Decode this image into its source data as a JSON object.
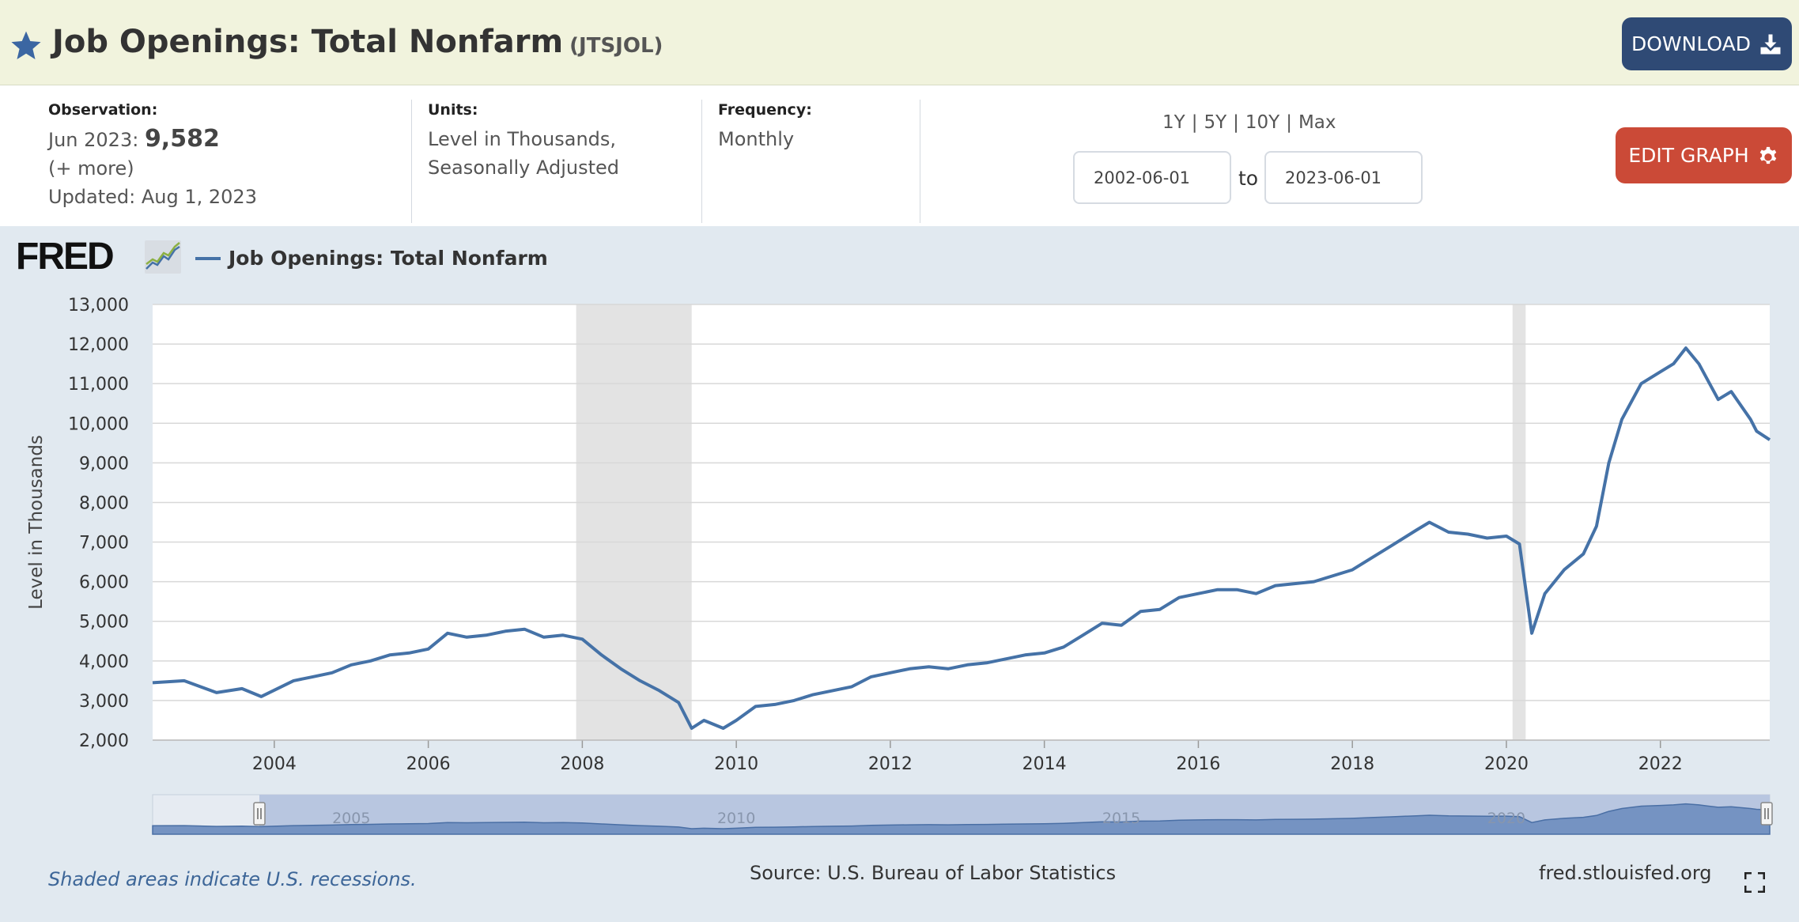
{
  "header": {
    "title": "Job Openings: Total Nonfarm",
    "series_id": "(JTSJOL)",
    "download_label": "DOWNLOAD"
  },
  "meta": {
    "observation_label": "Observation:",
    "observation_date": "Jun 2023:",
    "observation_value": "9,582",
    "more_label": "(+ more)",
    "updated": "Updated: Aug 1, 2023",
    "units_label": "Units:",
    "units_line1": "Level in Thousands,",
    "units_line2": "Seasonally Adjusted",
    "frequency_label": "Frequency:",
    "frequency_value": "Monthly"
  },
  "controls": {
    "ranges": [
      "1Y",
      "5Y",
      "10Y",
      "Max"
    ],
    "start_date": "2002-06-01",
    "to_label": "to",
    "end_date": "2023-06-01",
    "edit_label": "EDIT GRAPH"
  },
  "logo": {
    "text": "FRED"
  },
  "footer": {
    "note": "Shaded areas indicate U.S. recessions.",
    "source": "Source: U.S. Bureau of Labor Statistics",
    "site": "fred.stlouisfed.org"
  },
  "chart_data": {
    "type": "line",
    "ylabel": "Level in Thousands",
    "ylim": [
      2000,
      13000
    ],
    "y_ticks": [
      2000,
      3000,
      4000,
      5000,
      6000,
      7000,
      8000,
      9000,
      10000,
      11000,
      12000,
      13000
    ],
    "y_tick_labels": [
      "2,000",
      "3,000",
      "4,000",
      "5,000",
      "6,000",
      "7,000",
      "8,000",
      "9,000",
      "10,000",
      "11,000",
      "12,000",
      "13,000"
    ],
    "x_range": [
      2002.42,
      2023.42
    ],
    "x_ticks": [
      2004,
      2006,
      2008,
      2010,
      2012,
      2014,
      2016,
      2018,
      2020,
      2022
    ],
    "x_tick_labels": [
      "2004",
      "2006",
      "2008",
      "2010",
      "2012",
      "2014",
      "2016",
      "2018",
      "2020",
      "2022"
    ],
    "navigator_labels": [
      "2005",
      "2010",
      "2015",
      "2020"
    ],
    "navigator_ticks": [
      2005,
      2010,
      2015,
      2020
    ],
    "color": "#4572a7",
    "recessions": [
      [
        2007.92,
        2009.42
      ],
      [
        2020.08,
        2020.25
      ]
    ],
    "series": [
      {
        "name": "Job Openings: Total Nonfarm",
        "x": [
          2002.42,
          2002.83,
          2003.25,
          2003.58,
          2003.83,
          2004.25,
          2004.5,
          2004.75,
          2005.0,
          2005.25,
          2005.5,
          2005.75,
          2006.0,
          2006.25,
          2006.5,
          2006.75,
          2007.0,
          2007.25,
          2007.5,
          2007.75,
          2008.0,
          2008.25,
          2008.5,
          2008.75,
          2009.0,
          2009.25,
          2009.42,
          2009.58,
          2009.83,
          2010.0,
          2010.25,
          2010.5,
          2010.75,
          2011.0,
          2011.25,
          2011.5,
          2011.75,
          2012.0,
          2012.25,
          2012.5,
          2012.75,
          2013.0,
          2013.25,
          2013.5,
          2013.75,
          2014.0,
          2014.25,
          2014.5,
          2014.75,
          2015.0,
          2015.25,
          2015.5,
          2015.75,
          2016.0,
          2016.25,
          2016.5,
          2016.75,
          2017.0,
          2017.25,
          2017.5,
          2017.75,
          2018.0,
          2018.25,
          2018.5,
          2018.83,
          2019.0,
          2019.25,
          2019.5,
          2019.75,
          2020.0,
          2020.17,
          2020.33,
          2020.5,
          2020.75,
          2021.0,
          2021.17,
          2021.33,
          2021.5,
          2021.75,
          2022.0,
          2022.17,
          2022.33,
          2022.5,
          2022.75,
          2022.92,
          2023.17,
          2023.25,
          2023.42
        ],
        "y": [
          3450,
          3500,
          3200,
          3300,
          3100,
          3500,
          3600,
          3700,
          3900,
          4000,
          4150,
          4200,
          4300,
          4700,
          4600,
          4650,
          4750,
          4800,
          4600,
          4650,
          4550,
          4150,
          3800,
          3500,
          3250,
          2950,
          2300,
          2500,
          2300,
          2500,
          2850,
          2900,
          3000,
          3150,
          3250,
          3350,
          3600,
          3700,
          3800,
          3850,
          3800,
          3900,
          3950,
          4050,
          4150,
          4200,
          4350,
          4650,
          4950,
          4900,
          5250,
          5300,
          5600,
          5700,
          5800,
          5800,
          5700,
          5900,
          5950,
          6000,
          6150,
          6300,
          6600,
          6900,
          7300,
          7500,
          7250,
          7200,
          7100,
          7150,
          6950,
          4700,
          5700,
          6300,
          6700,
          7400,
          9000,
          10100,
          11000,
          11300,
          11500,
          11900,
          11500,
          10600,
          10800,
          10100,
          9800,
          9582
        ]
      }
    ]
  }
}
